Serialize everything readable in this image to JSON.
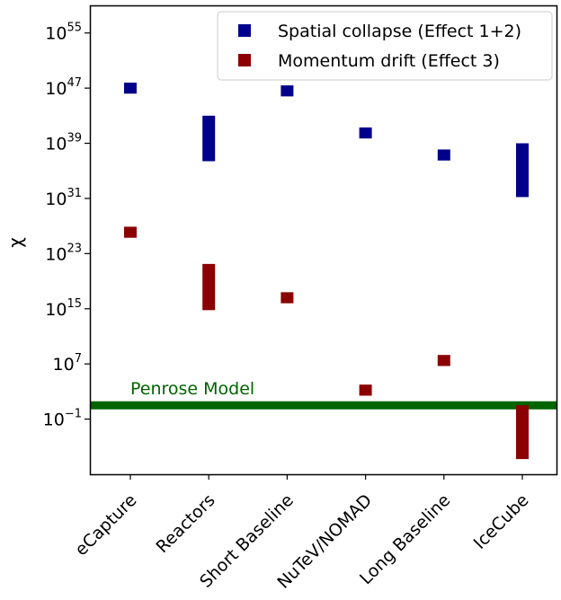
{
  "chart_data": {
    "type": "scatter",
    "ylabel": "χ",
    "yscale": "log",
    "ylim_log10": [
      -9,
      59
    ],
    "categories": [
      "eCapture",
      "Reactors",
      "Short Baseline",
      "NuTeV/NOMAD",
      "Long Baseline",
      "IceCube"
    ],
    "yticks": [
      {
        "base": "10",
        "exp": "55",
        "log10": 55
      },
      {
        "base": "10",
        "exp": "47",
        "log10": 47
      },
      {
        "base": "10",
        "exp": "39",
        "log10": 39
      },
      {
        "base": "10",
        "exp": "31",
        "log10": 31
      },
      {
        "base": "10",
        "exp": "23",
        "log10": 23
      },
      {
        "base": "10",
        "exp": "15",
        "log10": 15
      },
      {
        "base": "10",
        "exp": "7",
        "log10": 7
      },
      {
        "base": "10",
        "exp": "−1",
        "log10": -1
      }
    ],
    "series": [
      {
        "name": "Spatial collapse (Effect 1+2)",
        "color": "#00008b",
        "ranges_log10": [
          [
            46.2,
            47.8
          ],
          [
            36.4,
            43.0
          ],
          [
            45.8,
            47.4
          ],
          [
            39.7,
            41.3
          ],
          [
            36.5,
            38.1
          ],
          [
            31.2,
            39.0
          ]
        ]
      },
      {
        "name": "Momentum drift (Effect 3)",
        "color": "#8b0000",
        "ranges_log10": [
          [
            25.3,
            26.9
          ],
          [
            14.8,
            21.5
          ],
          [
            15.8,
            17.4
          ],
          [
            2.4,
            4.0
          ],
          [
            6.7,
            8.3
          ],
          [
            -6.8,
            1.0
          ]
        ]
      }
    ],
    "reference_line": {
      "label": "Penrose Model",
      "log10": 1.0,
      "color": "#006400"
    },
    "legend": {
      "position": "top-right"
    },
    "grid": false
  }
}
